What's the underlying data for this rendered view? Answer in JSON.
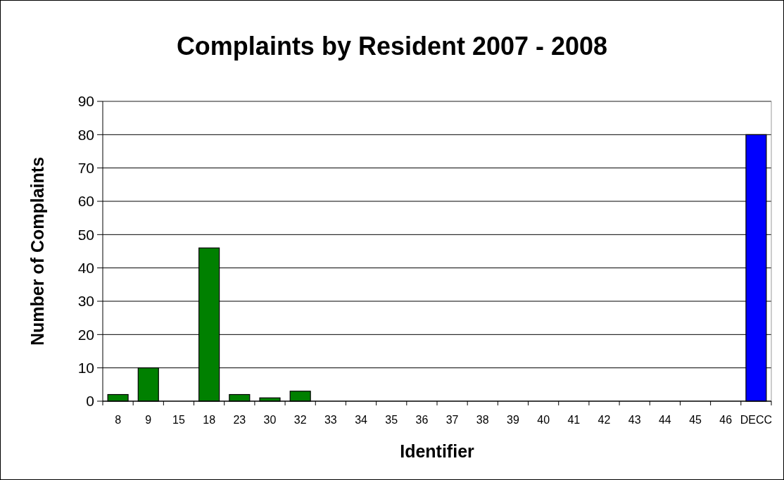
{
  "chart_data": {
    "type": "bar",
    "title": "Complaints by Resident 2007 - 2008",
    "xlabel": "Identifier",
    "ylabel": "Number of Complaints",
    "categories": [
      "8",
      "9",
      "15",
      "18",
      "23",
      "30",
      "32",
      "33",
      "34",
      "35",
      "36",
      "37",
      "38",
      "39",
      "40",
      "41",
      "42",
      "43",
      "44",
      "45",
      "46",
      "DECC"
    ],
    "values": [
      2,
      10,
      0,
      46,
      2,
      1,
      3,
      0,
      0,
      0,
      0,
      0,
      0,
      0,
      0,
      0,
      0,
      0,
      0,
      0,
      0,
      80
    ],
    "colors": [
      "#008000",
      "#008000",
      "#008000",
      "#008000",
      "#008000",
      "#008000",
      "#008000",
      "#008000",
      "#008000",
      "#008000",
      "#008000",
      "#008000",
      "#008000",
      "#008000",
      "#008000",
      "#008000",
      "#008000",
      "#008000",
      "#008000",
      "#008000",
      "#008000",
      "#0000ff"
    ],
    "ylim": [
      0,
      90
    ],
    "yticks": [
      0,
      10,
      20,
      30,
      40,
      50,
      60,
      70,
      80,
      90
    ],
    "grid": "y"
  }
}
